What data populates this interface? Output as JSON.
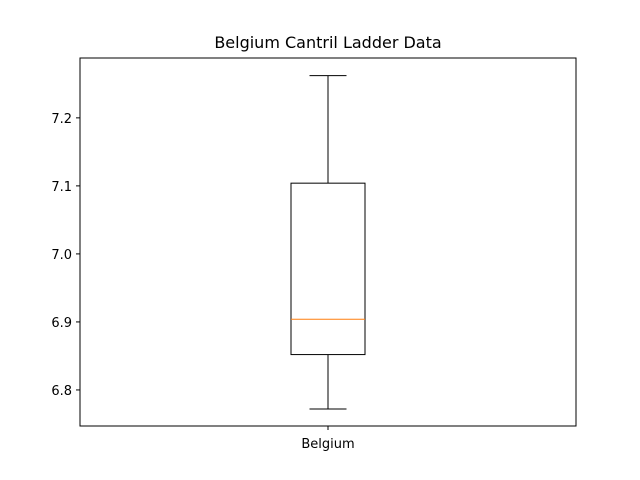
{
  "chart_data": {
    "type": "box",
    "title": "Belgium Cantril Ladder Data",
    "xlabel": "",
    "ylabel": "",
    "categories": [
      "Belgium"
    ],
    "series": [
      {
        "name": "Belgium",
        "whisker_low": 6.772,
        "q1": 6.852,
        "median": 6.904,
        "q3": 7.104,
        "whisker_high": 7.262
      }
    ],
    "ylim": [
      6.747,
      7.288
    ],
    "yticks": [
      "6.8",
      "6.9",
      "7.0",
      "7.1",
      "7.2"
    ],
    "grid": false,
    "colors": {
      "box": "#000000",
      "median": "#ff7f0e",
      "whisker": "#000000"
    }
  }
}
